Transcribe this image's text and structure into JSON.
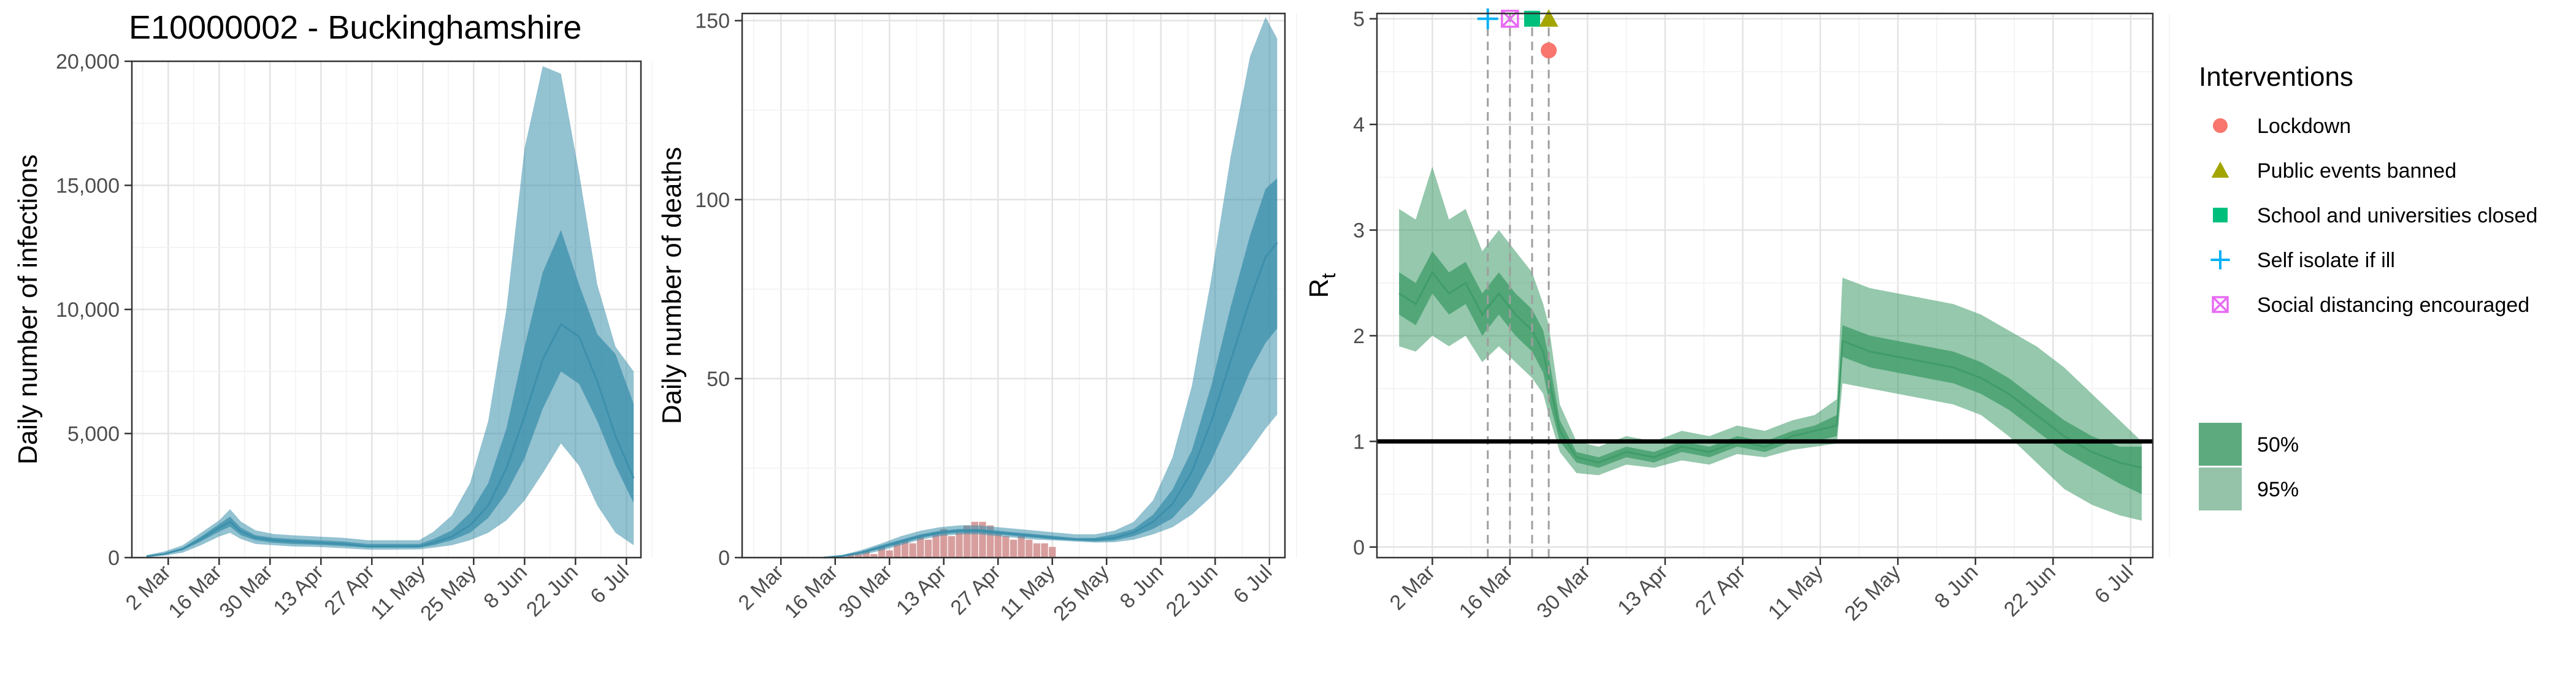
{
  "title": "E10000002 - Buckinghamshire",
  "colors": {
    "infection_band": "#3b8fab",
    "rt_band": "#3e9b67",
    "observed_deaths": "#d18d8d",
    "reference_line": "#000000"
  },
  "legend": {
    "interventions_title": "Interventions",
    "interventions": [
      {
        "label": "Lockdown",
        "shape": "circle",
        "color": "#f8766d"
      },
      {
        "label": "Public events banned",
        "shape": "triangle",
        "color": "#a3a500"
      },
      {
        "label": "School and universities closed",
        "shape": "square",
        "color": "#00bf7d"
      },
      {
        "label": "Self isolate if ill",
        "shape": "plus",
        "color": "#00b0f6"
      },
      {
        "label": "Social distancing encouraged",
        "shape": "boxed-x",
        "color": "#e76bf3"
      }
    ],
    "bands": [
      {
        "label": "50%",
        "color": "#3e9b67"
      },
      {
        "label": "95%",
        "color": "#3e9b67"
      }
    ]
  },
  "chart_data": [
    {
      "type": "area",
      "ylabel": "Daily number of infections",
      "xlabel": "",
      "xlim": [
        "2020-02-21",
        "2020-07-10"
      ],
      "ylim": [
        0,
        20000
      ],
      "x_ticks": [
        "2 Mar",
        "16 Mar",
        "30 Mar",
        "13 Apr",
        "27 Apr",
        "11 May",
        "25 May",
        "8 Jun",
        "22 Jun",
        "6 Jul"
      ],
      "y_ticks": [
        "0",
        "5,000",
        "10,000",
        "15,000",
        "20,000"
      ],
      "grid": true,
      "series": [
        {
          "x": [
            "2020-02-25",
            "2020-03-01",
            "2020-03-06",
            "2020-03-11",
            "2020-03-16",
            "2020-03-19",
            "2020-03-22",
            "2020-03-26",
            "2020-03-31",
            "2020-04-05",
            "2020-04-12",
            "2020-04-19",
            "2020-04-26",
            "2020-05-03",
            "2020-05-10",
            "2020-05-14",
            "2020-05-19",
            "2020-05-24",
            "2020-05-29",
            "2020-06-03",
            "2020-06-08",
            "2020-06-13",
            "2020-06-18",
            "2020-06-23",
            "2020-06-28",
            "2020-07-03",
            "2020-07-08"
          ],
          "median": [
            50,
            150,
            350,
            750,
            1200,
            1450,
            1050,
            800,
            700,
            650,
            600,
            550,
            450,
            450,
            450,
            600,
            850,
            1300,
            2100,
            3600,
            5700,
            8000,
            9400,
            8900,
            7100,
            4900,
            3200
          ],
          "lower_50": [
            40,
            120,
            300,
            650,
            1050,
            1250,
            900,
            700,
            600,
            550,
            520,
            470,
            400,
            400,
            400,
            500,
            700,
            1000,
            1600,
            2600,
            4000,
            6000,
            7500,
            7000,
            5500,
            3700,
            2200
          ],
          "upper_50": [
            70,
            180,
            400,
            850,
            1350,
            1650,
            1200,
            900,
            800,
            750,
            700,
            650,
            550,
            550,
            550,
            750,
            1100,
            1800,
            3000,
            5200,
            8500,
            11500,
            13200,
            11000,
            9000,
            8200,
            6200
          ],
          "lower_95": [
            20,
            80,
            200,
            500,
            850,
            1000,
            750,
            550,
            500,
            450,
            430,
            380,
            320,
            320,
            330,
            400,
            500,
            700,
            1000,
            1500,
            2300,
            3400,
            4600,
            3700,
            2100,
            1000,
            500
          ],
          "upper_95": [
            100,
            250,
            500,
            1000,
            1500,
            1950,
            1450,
            1100,
            950,
            900,
            850,
            800,
            700,
            700,
            700,
            1050,
            1700,
            3000,
            5500,
            10000,
            16500,
            19800,
            19500,
            15500,
            11000,
            8500,
            7500
          ]
        }
      ]
    },
    {
      "type": "area",
      "ylabel": "Daily number of deaths",
      "xlabel": "",
      "xlim": [
        "2020-02-21",
        "2020-07-10"
      ],
      "ylim": [
        0,
        152
      ],
      "x_ticks": [
        "2 Mar",
        "16 Mar",
        "30 Mar",
        "13 Apr",
        "27 Apr",
        "11 May",
        "25 May",
        "8 Jun",
        "22 Jun",
        "6 Jul"
      ],
      "y_ticks": [
        "0",
        "50",
        "100",
        "150"
      ],
      "grid": true,
      "observed_deaths": {
        "x": [
          "2020-03-20",
          "2020-03-22",
          "2020-03-24",
          "2020-03-26",
          "2020-03-28",
          "2020-03-30",
          "2020-04-01",
          "2020-04-03",
          "2020-04-05",
          "2020-04-07",
          "2020-04-09",
          "2020-04-11",
          "2020-04-13",
          "2020-04-15",
          "2020-04-17",
          "2020-04-19",
          "2020-04-21",
          "2020-04-23",
          "2020-04-25",
          "2020-04-27",
          "2020-04-29",
          "2020-05-01",
          "2020-05-03",
          "2020-05-05",
          "2020-05-07",
          "2020-05-09",
          "2020-05-11"
        ],
        "values": [
          1,
          1,
          2,
          1,
          3,
          2,
          4,
          5,
          4,
          6,
          5,
          7,
          8,
          6,
          7,
          9,
          10,
          10,
          9,
          7,
          6,
          5,
          6,
          5,
          4,
          4,
          3
        ]
      },
      "series": [
        {
          "x": [
            "2020-03-13",
            "2020-03-18",
            "2020-03-23",
            "2020-03-28",
            "2020-04-02",
            "2020-04-07",
            "2020-04-12",
            "2020-04-17",
            "2020-04-22",
            "2020-04-27",
            "2020-05-02",
            "2020-05-07",
            "2020-05-12",
            "2020-05-17",
            "2020-05-22",
            "2020-05-27",
            "2020-06-01",
            "2020-06-06",
            "2020-06-11",
            "2020-06-16",
            "2020-06-21",
            "2020-06-26",
            "2020-07-01",
            "2020-07-05",
            "2020-07-08"
          ],
          "median": [
            0,
            0.5,
            1.5,
            3,
            4.5,
            6,
            7,
            7.5,
            7.5,
            7,
            6.5,
            6,
            5.5,
            5,
            5,
            5.5,
            7,
            10,
            15,
            24,
            38,
            55,
            72,
            84,
            88
          ],
          "lower_50": [
            0,
            0.4,
            1.2,
            2.5,
            4,
            5.5,
            6.5,
            7,
            7,
            6.5,
            6,
            5.5,
            5,
            4.8,
            4.5,
            4.8,
            6,
            8,
            11,
            17,
            27,
            39,
            52,
            60,
            64
          ],
          "upper_50": [
            0,
            0.6,
            1.8,
            3.5,
            5,
            6.5,
            7.5,
            8,
            8,
            7.5,
            7,
            6.5,
            6,
            5.5,
            5.5,
            6.5,
            8,
            12,
            19,
            30,
            48,
            70,
            90,
            103,
            106
          ],
          "lower_95": [
            0,
            0.2,
            0.8,
            2,
            3.5,
            5,
            6,
            6.5,
            6.5,
            6,
            5.5,
            5,
            4.8,
            4.5,
            4.2,
            4.3,
            5,
            6.5,
            8.5,
            12,
            17,
            23,
            30,
            36,
            40
          ],
          "upper_95": [
            0,
            0.8,
            2.2,
            4,
            6,
            7.5,
            8.5,
            9,
            9,
            8.5,
            8,
            7.5,
            7,
            6.5,
            6.5,
            7.5,
            10,
            16,
            28,
            48,
            78,
            112,
            140,
            151,
            145
          ]
        }
      ]
    },
    {
      "type": "area",
      "ylabel": "Rt",
      "xlabel": "",
      "xlim": [
        "2020-02-21",
        "2020-07-10"
      ],
      "ylim": [
        -0.1,
        5.05
      ],
      "x_ticks": [
        "2 Mar",
        "16 Mar",
        "30 Mar",
        "13 Apr",
        "27 Apr",
        "11 May",
        "25 May",
        "8 Jun",
        "22 Jun",
        "6 Jul"
      ],
      "y_ticks": [
        "0",
        "1",
        "2",
        "3",
        "4",
        "5"
      ],
      "grid": true,
      "reference_line_y": 1,
      "intervention_dates": [
        "2020-03-12",
        "2020-03-16",
        "2020-03-20",
        "2020-03-23"
      ],
      "intervention_markers": [
        {
          "label": "Self isolate if ill",
          "x": "2020-03-12",
          "y": 5.0
        },
        {
          "label": "Social distancing encouraged",
          "x": "2020-03-16",
          "y": 5.0
        },
        {
          "label": "School and universities closed",
          "x": "2020-03-20",
          "y": 5.0
        },
        {
          "label": "Public events banned",
          "x": "2020-03-23",
          "y": 5.0
        },
        {
          "label": "Lockdown",
          "x": "2020-03-23",
          "y": 4.7
        }
      ],
      "series": [
        {
          "x": [
            "2020-02-25",
            "2020-02-28",
            "2020-03-02",
            "2020-03-05",
            "2020-03-08",
            "2020-03-11",
            "2020-03-14",
            "2020-03-17",
            "2020-03-20",
            "2020-03-22",
            "2020-03-23",
            "2020-03-25",
            "2020-03-28",
            "2020-04-01",
            "2020-04-06",
            "2020-04-11",
            "2020-04-16",
            "2020-04-21",
            "2020-04-26",
            "2020-05-01",
            "2020-05-06",
            "2020-05-10",
            "2020-05-14",
            "2020-05-15",
            "2020-05-20",
            "2020-05-25",
            "2020-05-30",
            "2020-06-04",
            "2020-06-09",
            "2020-06-14",
            "2020-06-19",
            "2020-06-24",
            "2020-06-29",
            "2020-07-04",
            "2020-07-08"
          ],
          "median": [
            2.4,
            2.3,
            2.6,
            2.4,
            2.5,
            2.2,
            2.4,
            2.2,
            2.05,
            1.85,
            1.6,
            1.1,
            0.85,
            0.8,
            0.9,
            0.85,
            0.95,
            0.9,
            1.0,
            0.95,
            1.05,
            1.1,
            1.15,
            1.95,
            1.85,
            1.8,
            1.75,
            1.7,
            1.6,
            1.45,
            1.25,
            1.05,
            0.9,
            0.8,
            0.75
          ],
          "lower_50": [
            2.2,
            2.1,
            2.4,
            2.2,
            2.3,
            2.0,
            2.2,
            2.0,
            1.85,
            1.65,
            1.4,
            1.0,
            0.8,
            0.75,
            0.85,
            0.8,
            0.9,
            0.85,
            0.95,
            0.9,
            1.0,
            1.0,
            1.05,
            1.8,
            1.7,
            1.65,
            1.6,
            1.55,
            1.45,
            1.3,
            1.1,
            0.9,
            0.75,
            0.6,
            0.5
          ],
          "upper_50": [
            2.6,
            2.5,
            2.8,
            2.6,
            2.7,
            2.4,
            2.6,
            2.4,
            2.25,
            2.05,
            1.8,
            1.2,
            0.9,
            0.85,
            0.95,
            0.9,
            1.0,
            0.95,
            1.05,
            1.0,
            1.1,
            1.15,
            1.25,
            2.1,
            2.0,
            1.95,
            1.9,
            1.85,
            1.75,
            1.6,
            1.4,
            1.2,
            1.05,
            0.95,
            0.95
          ],
          "lower_95": [
            1.9,
            1.85,
            2.0,
            1.9,
            2.0,
            1.75,
            1.9,
            1.75,
            1.6,
            1.45,
            1.25,
            0.9,
            0.7,
            0.68,
            0.78,
            0.75,
            0.82,
            0.78,
            0.88,
            0.85,
            0.92,
            0.95,
            0.98,
            1.55,
            1.5,
            1.45,
            1.4,
            1.35,
            1.25,
            1.05,
            0.8,
            0.55,
            0.4,
            0.3,
            0.25
          ],
          "upper_95": [
            3.2,
            3.1,
            3.6,
            3.1,
            3.2,
            2.8,
            3.0,
            2.8,
            2.6,
            2.3,
            2.1,
            1.35,
            1.0,
            0.95,
            1.05,
            1.0,
            1.1,
            1.05,
            1.15,
            1.1,
            1.2,
            1.25,
            1.4,
            2.55,
            2.45,
            2.4,
            2.35,
            2.3,
            2.2,
            2.05,
            1.9,
            1.7,
            1.45,
            1.2,
            1.0
          ]
        }
      ]
    }
  ]
}
